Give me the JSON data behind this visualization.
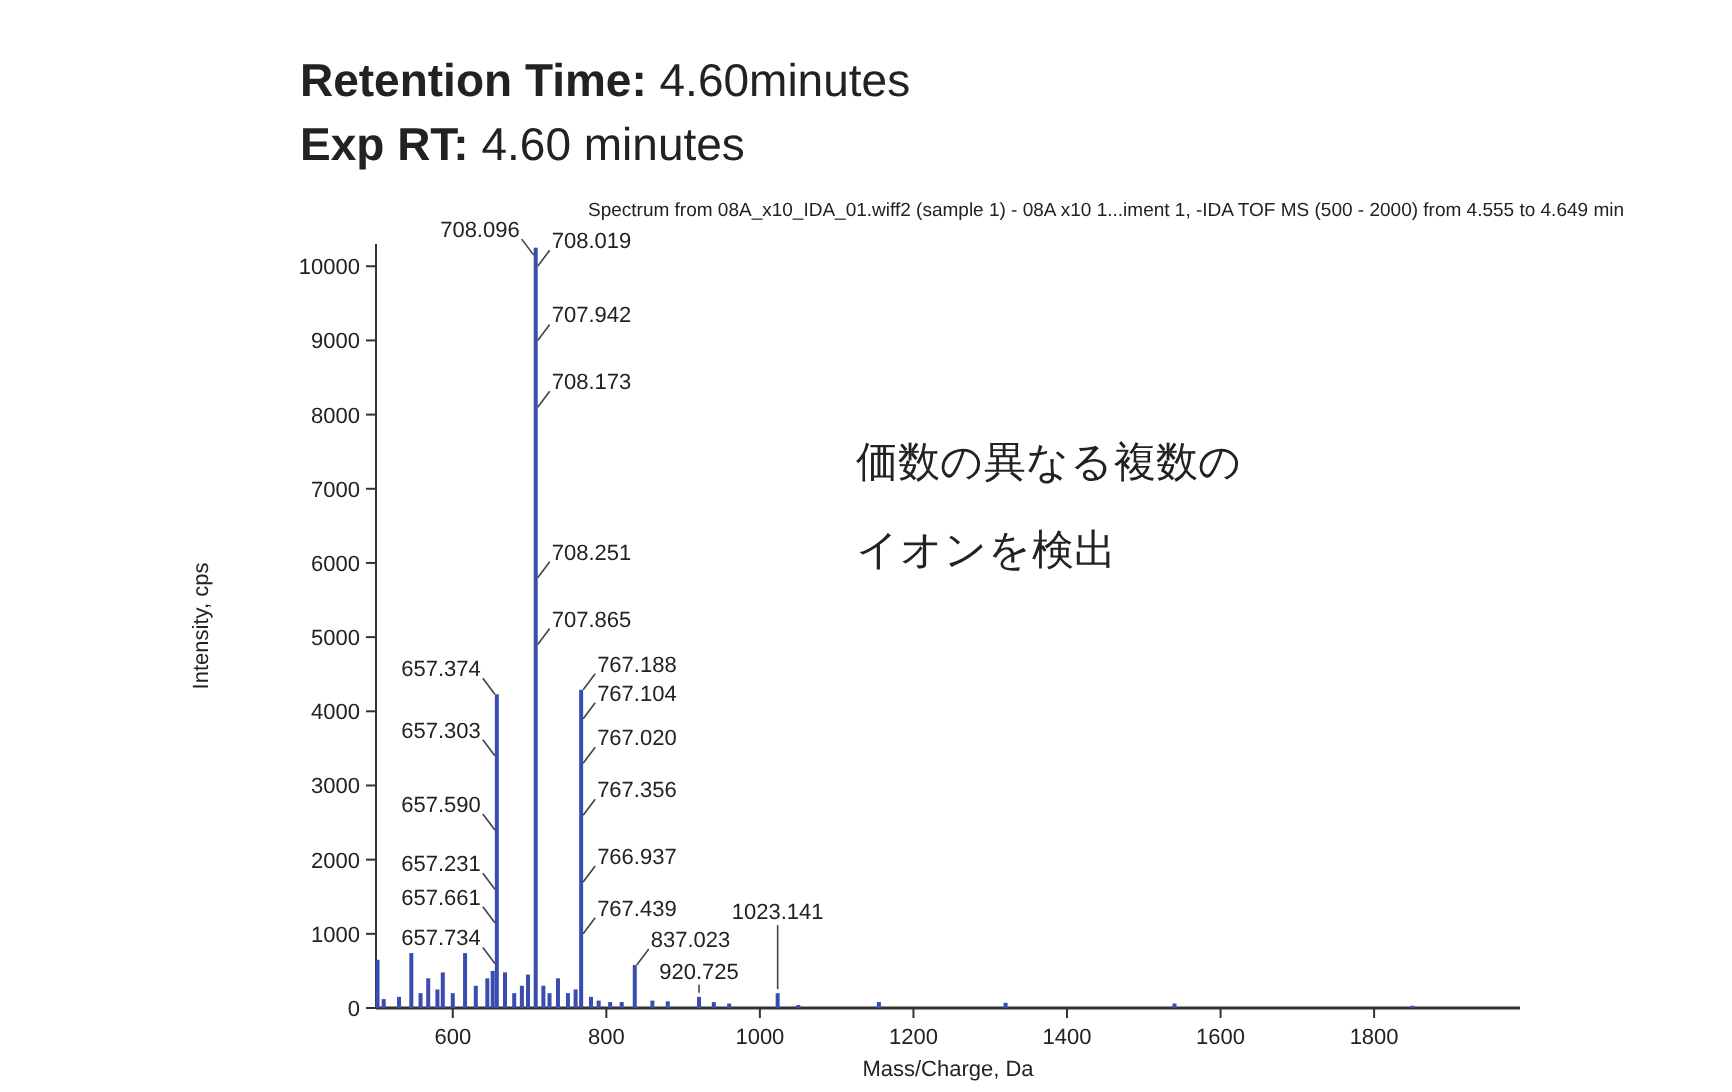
{
  "chart_data": {
    "type": "bar",
    "title": "**Retention Time:** 4.60minutes",
    "subtitle": "**Exp RT:** 4.60 minutes",
    "xlabel": "Mass/Charge, Da",
    "ylabel": "Intensity, cps",
    "color": "#3a4cb0",
    "xlim": [
      500,
      1990
    ],
    "ylim": [
      0,
      10300
    ],
    "xticks": [
      600,
      800,
      1000,
      1200,
      1400,
      1600,
      1800
    ],
    "yticks": [
      0,
      1000,
      2000,
      3000,
      4000,
      5000,
      6000,
      7000,
      8000,
      9000,
      10000
    ],
    "x": [
      502,
      510,
      530,
      546,
      558,
      568,
      580,
      587,
      600,
      616,
      630,
      645,
      652,
      657.374,
      668,
      680,
      690,
      698,
      708.019,
      718,
      726,
      737,
      750,
      760,
      767.188,
      780,
      790,
      805,
      820,
      837.023,
      860,
      880,
      920.725,
      940,
      960,
      1023.141,
      1050,
      1155,
      1320,
      1540,
      1850
    ],
    "values": [
      650,
      120,
      150,
      740,
      200,
      400,
      250,
      480,
      200,
      740,
      300,
      400,
      500,
      4230,
      480,
      200,
      300,
      450,
      10250,
      300,
      200,
      400,
      200,
      250,
      4290,
      150,
      100,
      80,
      80,
      580,
      100,
      90,
      150,
      80,
      60,
      200,
      40,
      80,
      70,
      60,
      30
    ],
    "annotations": [
      "Spectrum from 08A_x10_IDA_01.wiff2 (sample 1) - 08A x10 1...iment 1, -IDA TOF MS (500 - 2000) from 4.555 to 4.649 min",
      "価数の異なる複数の",
      "イオンを検出",
      {
        "text": "708.019",
        "x": 708.019,
        "y": 10000
      },
      {
        "text": "708.096",
        "x": 708.019,
        "y": 10150
      },
      {
        "text": "707.942",
        "x": 708.019,
        "y": 9000
      },
      {
        "text": "708.173",
        "x": 708.019,
        "y": 8100
      },
      {
        "text": "708.251",
        "x": 708.019,
        "y": 5800
      },
      {
        "text": "707.865",
        "x": 708.019,
        "y": 4900
      },
      {
        "text": "657.374",
        "x": 657.374,
        "y": 4230
      },
      {
        "text": "657.303",
        "x": 657.374,
        "y": 3400
      },
      {
        "text": "657.590",
        "x": 657.374,
        "y": 2400
      },
      {
        "text": "657.231",
        "x": 657.374,
        "y": 1600
      },
      {
        "text": "657.661",
        "x": 657.374,
        "y": 1150
      },
      {
        "text": "657.734",
        "x": 657.374,
        "y": 600
      },
      {
        "text": "767.188",
        "x": 767.188,
        "y": 4290
      },
      {
        "text": "767.104",
        "x": 767.188,
        "y": 3900
      },
      {
        "text": "767.020",
        "x": 767.188,
        "y": 3300
      },
      {
        "text": "767.356",
        "x": 767.188,
        "y": 2600
      },
      {
        "text": "766.937",
        "x": 767.188,
        "y": 1700
      },
      {
        "text": "767.439",
        "x": 767.188,
        "y": 1000
      },
      {
        "text": "837.023",
        "x": 837.023,
        "y": 580
      },
      {
        "text": "920.725",
        "x": 920.725,
        "y": 150
      },
      {
        "text": "1023.141",
        "x": 1023.141,
        "y": 200
      }
    ]
  }
}
